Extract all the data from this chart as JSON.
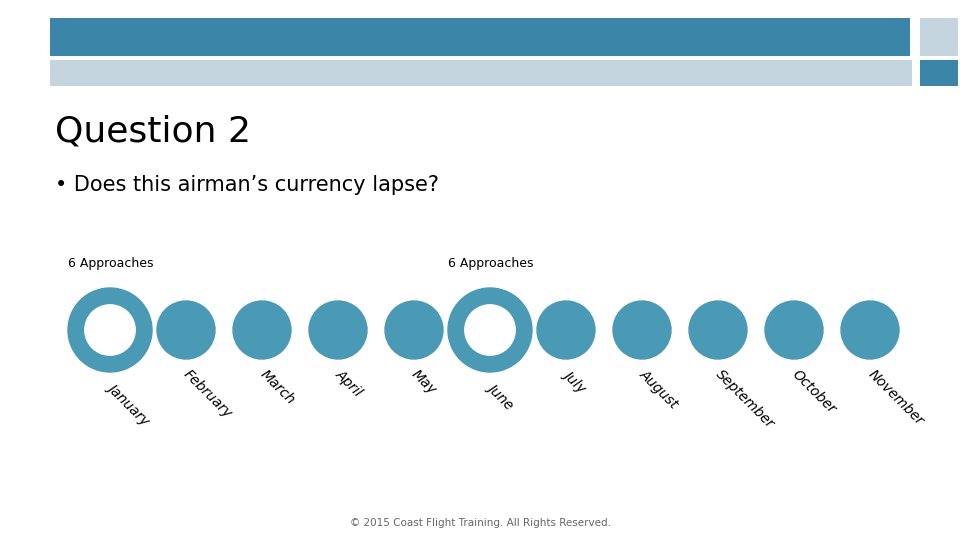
{
  "title": "Question 2",
  "bullet": "• Does this airman’s currency lapse?",
  "months": [
    "January",
    "February",
    "March",
    "April",
    "May",
    "June",
    "July",
    "August",
    "September",
    "October",
    "November"
  ],
  "hollow_months": [
    "January",
    "June"
  ],
  "labels": [
    "6 Approaches",
    "6 Approaches"
  ],
  "teal_color": "#4a9ab5",
  "background_color": "#ffffff",
  "header_bar1_color": "#3a85a8",
  "header_bar2_color": "#c5d5e0",
  "header_accent_color": "#3a85a8",
  "footer_text": "© 2015 Coast Flight Training. All Rights Reserved.",
  "title_fontsize": 26,
  "bullet_fontsize": 15,
  "label_fontsize": 9,
  "month_fontsize": 10
}
